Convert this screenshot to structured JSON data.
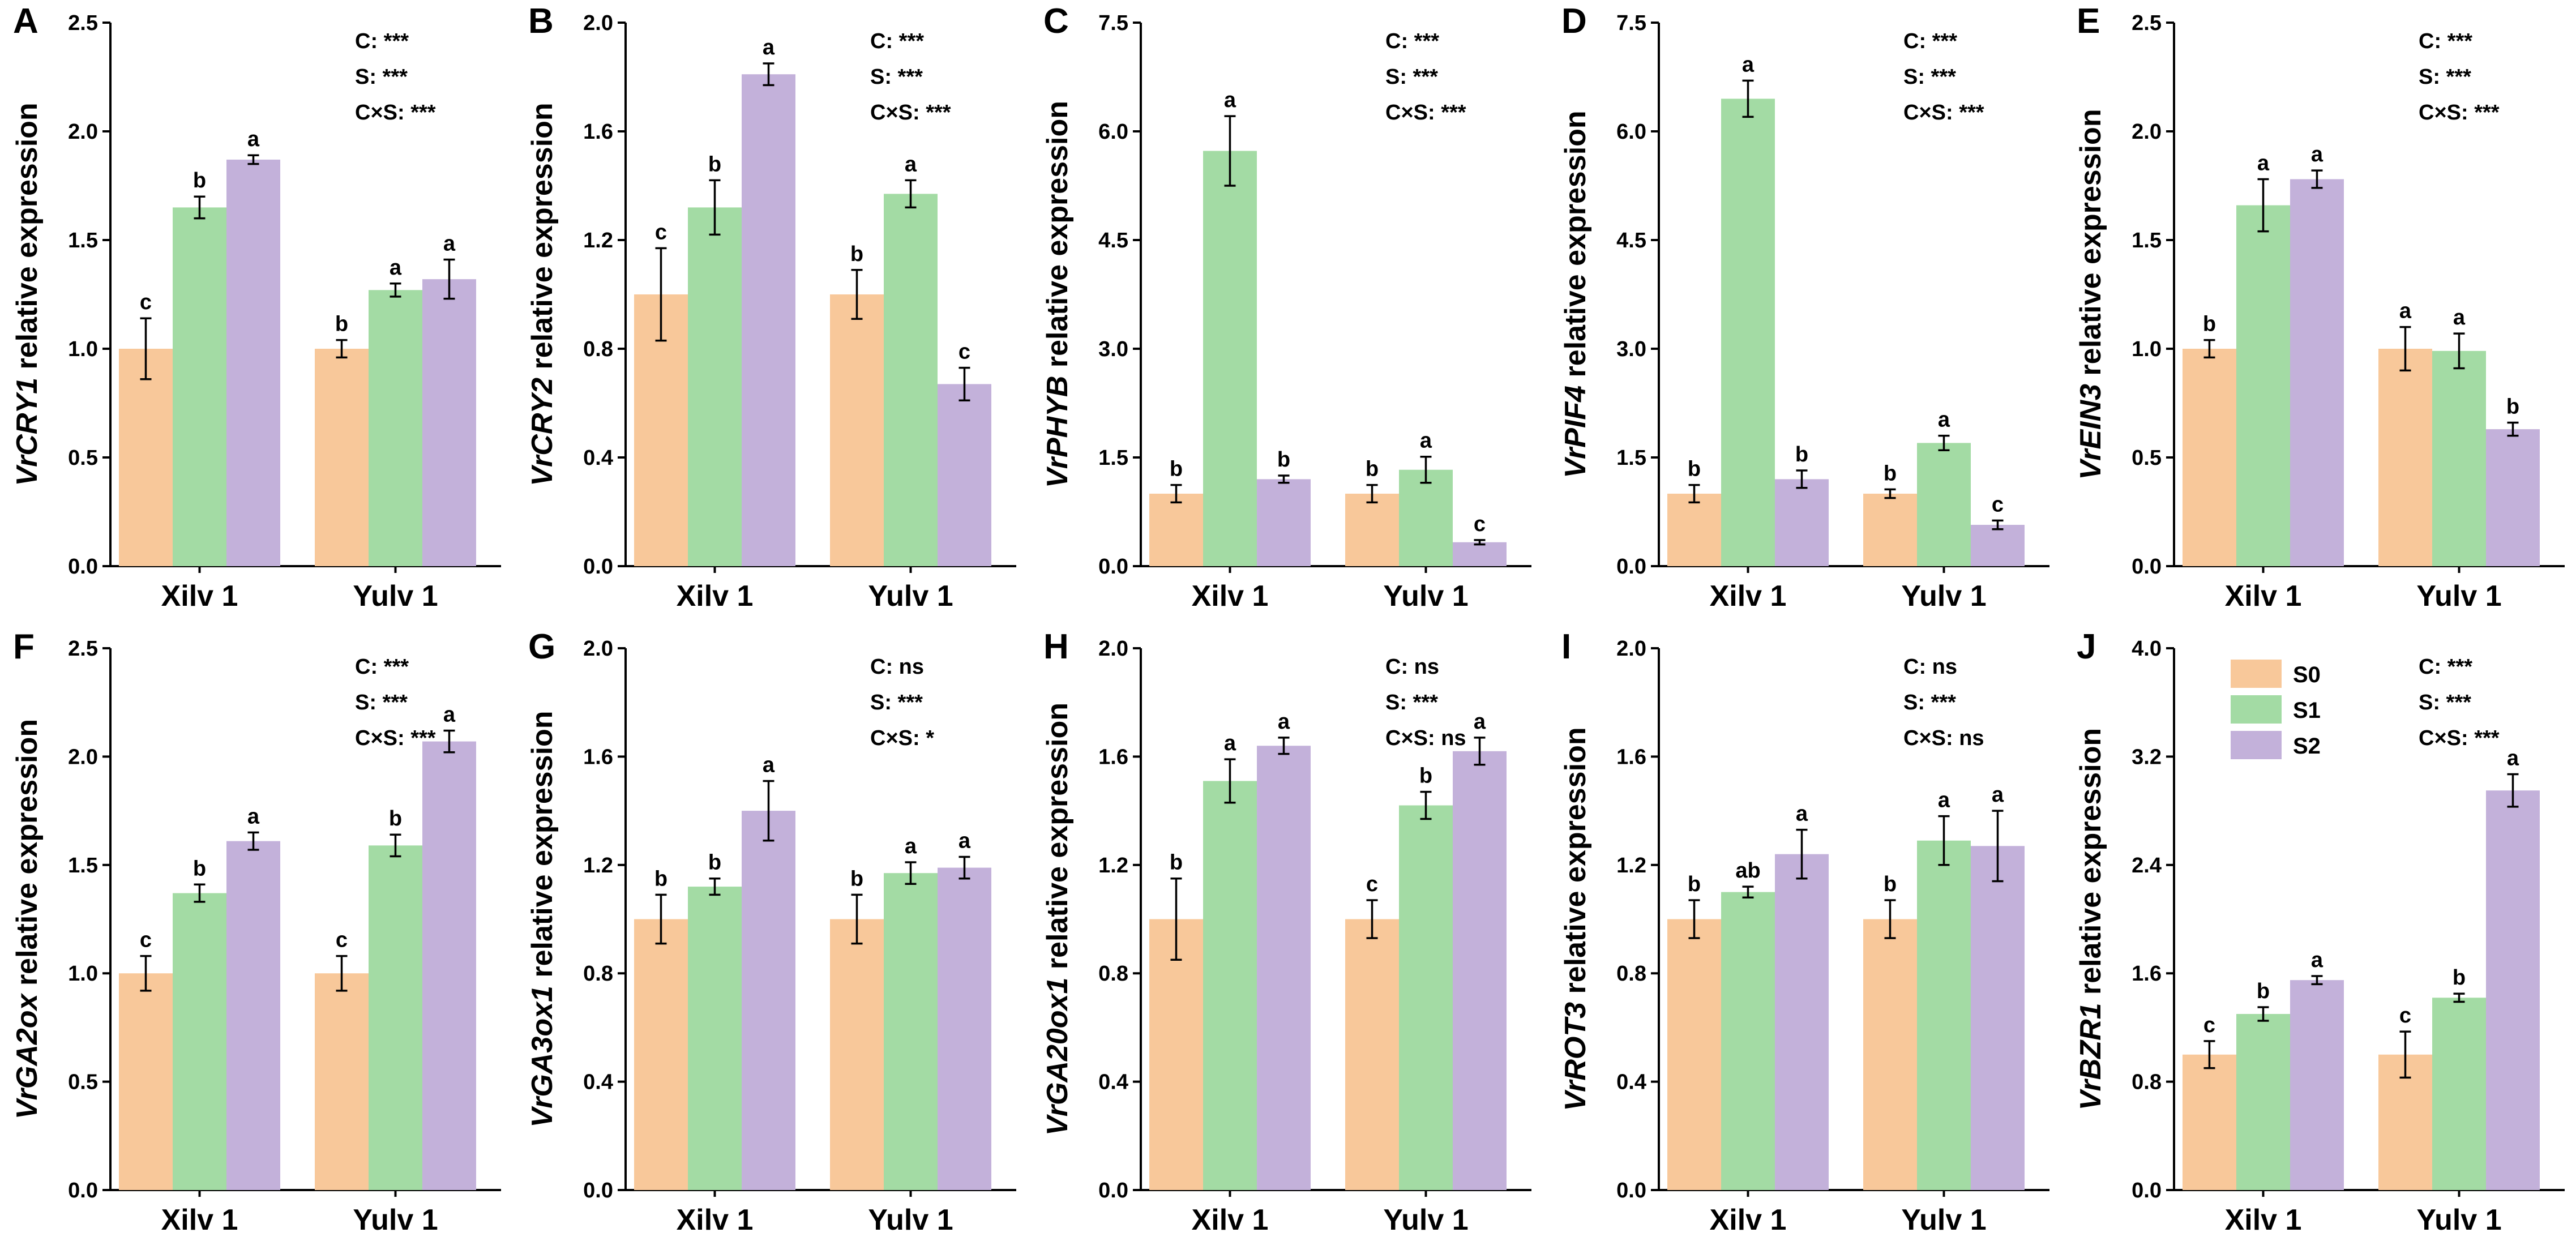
{
  "colors": {
    "S0": "#f8c89a",
    "S1": "#a3dba4",
    "S2": "#c3b1da",
    "axis": "#000000"
  },
  "legend": {
    "labels": [
      "S0",
      "S1",
      "S2"
    ]
  },
  "chart_data": [
    {
      "panel": "A",
      "type": "bar",
      "ylabel_gene": "VrCRY1",
      "ylabel_rest": " relative expression",
      "ylim": [
        0,
        2.5
      ],
      "yticks": [
        "0.0",
        "0.5",
        "1.0",
        "1.5",
        "2.0",
        "2.5"
      ],
      "categories": [
        "Xilv 1",
        "Yulv 1"
      ],
      "series": [
        {
          "name": "S0",
          "values": [
            1.0,
            1.0
          ],
          "errors": [
            0.14,
            0.04
          ],
          "letters": [
            "c",
            "b"
          ]
        },
        {
          "name": "S1",
          "values": [
            1.65,
            1.27
          ],
          "errors": [
            0.05,
            0.03
          ],
          "letters": [
            "b",
            "a"
          ]
        },
        {
          "name": "S2",
          "values": [
            1.87,
            1.32
          ],
          "errors": [
            0.02,
            0.09
          ],
          "letters": [
            "a",
            "a"
          ]
        }
      ],
      "stats": [
        "C: ***",
        "S: ***",
        "C×S: ***"
      ]
    },
    {
      "panel": "B",
      "type": "bar",
      "ylabel_gene": "VrCRY2",
      "ylabel_rest": " relative expression",
      "ylim": [
        0,
        2.0
      ],
      "yticks": [
        "0.0",
        "0.4",
        "0.8",
        "1.2",
        "1.6",
        "2.0"
      ],
      "categories": [
        "Xilv 1",
        "Yulv 1"
      ],
      "series": [
        {
          "name": "S0",
          "values": [
            1.0,
            1.0
          ],
          "errors": [
            0.17,
            0.09
          ],
          "letters": [
            "c",
            "b"
          ]
        },
        {
          "name": "S1",
          "values": [
            1.32,
            1.37
          ],
          "errors": [
            0.1,
            0.05
          ],
          "letters": [
            "b",
            "a"
          ]
        },
        {
          "name": "S2",
          "values": [
            1.81,
            0.67
          ],
          "errors": [
            0.04,
            0.06
          ],
          "letters": [
            "a",
            "c"
          ]
        }
      ],
      "stats": [
        "C: ***",
        "S: ***",
        "C×S: ***"
      ]
    },
    {
      "panel": "C",
      "type": "bar",
      "ylabel_gene": "VrPHYB",
      "ylabel_rest": " relative expression",
      "ylim": [
        0,
        7.5
      ],
      "yticks": [
        "0.0",
        "1.5",
        "3.0",
        "4.5",
        "6.0",
        "7.5"
      ],
      "categories": [
        "Xilv 1",
        "Yulv 1"
      ],
      "series": [
        {
          "name": "S0",
          "values": [
            1.0,
            1.0
          ],
          "errors": [
            0.12,
            0.12
          ],
          "letters": [
            "b",
            "b"
          ]
        },
        {
          "name": "S1",
          "values": [
            5.73,
            1.33
          ],
          "errors": [
            0.48,
            0.18
          ],
          "letters": [
            "a",
            "a"
          ]
        },
        {
          "name": "S2",
          "values": [
            1.2,
            0.33
          ],
          "errors": [
            0.05,
            0.03
          ],
          "letters": [
            "b",
            "c"
          ]
        }
      ],
      "stats": [
        "C: ***",
        "S: ***",
        "C×S: ***"
      ]
    },
    {
      "panel": "D",
      "type": "bar",
      "ylabel_gene": "VrPIF4",
      "ylabel_rest": " relative expression",
      "ylim": [
        0,
        7.5
      ],
      "yticks": [
        "0.0",
        "1.5",
        "3.0",
        "4.5",
        "6.0",
        "7.5"
      ],
      "categories": [
        "Xilv 1",
        "Yulv 1"
      ],
      "series": [
        {
          "name": "S0",
          "values": [
            1.0,
            1.0
          ],
          "errors": [
            0.12,
            0.06
          ],
          "letters": [
            "b",
            "b"
          ]
        },
        {
          "name": "S1",
          "values": [
            6.45,
            1.7
          ],
          "errors": [
            0.25,
            0.1
          ],
          "letters": [
            "a",
            "a"
          ]
        },
        {
          "name": "S2",
          "values": [
            1.2,
            0.57
          ],
          "errors": [
            0.12,
            0.06
          ],
          "letters": [
            "b",
            "c"
          ]
        }
      ],
      "stats": [
        "C: ***",
        "S: ***",
        "C×S: ***"
      ]
    },
    {
      "panel": "E",
      "type": "bar",
      "ylabel_gene": "VrEIN3",
      "ylabel_rest": " relative expression",
      "ylim": [
        0,
        2.5
      ],
      "yticks": [
        "0.0",
        "0.5",
        "1.0",
        "1.5",
        "2.0",
        "2.5"
      ],
      "categories": [
        "Xilv 1",
        "Yulv 1"
      ],
      "series": [
        {
          "name": "S0",
          "values": [
            1.0,
            1.0
          ],
          "errors": [
            0.04,
            0.1
          ],
          "letters": [
            "b",
            "a"
          ]
        },
        {
          "name": "S1",
          "values": [
            1.66,
            0.99
          ],
          "errors": [
            0.12,
            0.08
          ],
          "letters": [
            "a",
            "a"
          ]
        },
        {
          "name": "S2",
          "values": [
            1.78,
            0.63
          ],
          "errors": [
            0.04,
            0.03
          ],
          "letters": [
            "a",
            "b"
          ]
        }
      ],
      "stats": [
        "C: ***",
        "S: ***",
        "C×S: ***"
      ]
    },
    {
      "panel": "F",
      "type": "bar",
      "ylabel_gene": "VrGA2ox",
      "ylabel_rest": " relative expression",
      "ylim": [
        0,
        2.5
      ],
      "yticks": [
        "0.0",
        "0.5",
        "1.0",
        "1.5",
        "2.0",
        "2.5"
      ],
      "categories": [
        "Xilv 1",
        "Yulv 1"
      ],
      "series": [
        {
          "name": "S0",
          "values": [
            1.0,
            1.0
          ],
          "errors": [
            0.08,
            0.08
          ],
          "letters": [
            "c",
            "c"
          ]
        },
        {
          "name": "S1",
          "values": [
            1.37,
            1.59
          ],
          "errors": [
            0.04,
            0.05
          ],
          "letters": [
            "b",
            "b"
          ]
        },
        {
          "name": "S2",
          "values": [
            1.61,
            2.07
          ],
          "errors": [
            0.04,
            0.05
          ],
          "letters": [
            "a",
            "a"
          ]
        }
      ],
      "stats": [
        "C: ***",
        "S: ***",
        "C×S: ***"
      ]
    },
    {
      "panel": "G",
      "type": "bar",
      "ylabel_gene": "VrGA3ox1",
      "ylabel_rest": " relative expression",
      "ylim": [
        0,
        2.0
      ],
      "yticks": [
        "0.0",
        "0.4",
        "0.8",
        "1.2",
        "1.6",
        "2.0"
      ],
      "categories": [
        "Xilv 1",
        "Yulv 1"
      ],
      "series": [
        {
          "name": "S0",
          "values": [
            1.0,
            1.0
          ],
          "errors": [
            0.09,
            0.09
          ],
          "letters": [
            "b",
            "b"
          ]
        },
        {
          "name": "S1",
          "values": [
            1.12,
            1.17
          ],
          "errors": [
            0.03,
            0.04
          ],
          "letters": [
            "b",
            "a"
          ]
        },
        {
          "name": "S2",
          "values": [
            1.4,
            1.19
          ],
          "errors": [
            0.11,
            0.04
          ],
          "letters": [
            "a",
            "a"
          ]
        }
      ],
      "stats": [
        "C: ns",
        "S: ***",
        "C×S: *"
      ]
    },
    {
      "panel": "H",
      "type": "bar",
      "ylabel_gene": "VrGA20ox1",
      "ylabel_rest": " relative expression",
      "ylim": [
        0,
        2.0
      ],
      "yticks": [
        "0.0",
        "0.4",
        "0.8",
        "1.2",
        "1.6",
        "2.0"
      ],
      "categories": [
        "Xilv 1",
        "Yulv 1"
      ],
      "series": [
        {
          "name": "S0",
          "values": [
            1.0,
            1.0
          ],
          "errors": [
            0.15,
            0.07
          ],
          "letters": [
            "b",
            "c"
          ]
        },
        {
          "name": "S1",
          "values": [
            1.51,
            1.42
          ],
          "errors": [
            0.08,
            0.05
          ],
          "letters": [
            "a",
            "b"
          ]
        },
        {
          "name": "S2",
          "values": [
            1.64,
            1.62
          ],
          "errors": [
            0.03,
            0.05
          ],
          "letters": [
            "a",
            "a"
          ]
        }
      ],
      "stats": [
        "C: ns",
        "S: ***",
        "C×S: ns"
      ]
    },
    {
      "panel": "I",
      "type": "bar",
      "ylabel_gene": "VrROT3",
      "ylabel_rest": " relative expression",
      "ylim": [
        0,
        2.0
      ],
      "yticks": [
        "0.0",
        "0.4",
        "0.8",
        "1.2",
        "1.6",
        "2.0"
      ],
      "categories": [
        "Xilv 1",
        "Yulv 1"
      ],
      "series": [
        {
          "name": "S0",
          "values": [
            1.0,
            1.0
          ],
          "errors": [
            0.07,
            0.07
          ],
          "letters": [
            "b",
            "b"
          ]
        },
        {
          "name": "S1",
          "values": [
            1.1,
            1.29
          ],
          "errors": [
            0.02,
            0.09
          ],
          "letters": [
            "ab",
            "a"
          ]
        },
        {
          "name": "S2",
          "values": [
            1.24,
            1.27
          ],
          "errors": [
            0.09,
            0.13
          ],
          "letters": [
            "a",
            "a"
          ]
        }
      ],
      "stats": [
        "C: ns",
        "S: ***",
        "C×S: ns"
      ]
    },
    {
      "panel": "J",
      "type": "bar",
      "ylabel_gene": "VrBZR1",
      "ylabel_rest": " relative expression",
      "ylim": [
        0,
        4.0
      ],
      "yticks": [
        "0.0",
        "0.8",
        "1.6",
        "2.4",
        "3.2",
        "4.0"
      ],
      "categories": [
        "Xilv 1",
        "Yulv 1"
      ],
      "series": [
        {
          "name": "S0",
          "values": [
            1.0,
            1.0
          ],
          "errors": [
            0.1,
            0.17
          ],
          "letters": [
            "c",
            "c"
          ]
        },
        {
          "name": "S1",
          "values": [
            1.3,
            1.42
          ],
          "errors": [
            0.05,
            0.03
          ],
          "letters": [
            "b",
            "b"
          ]
        },
        {
          "name": "S2",
          "values": [
            1.55,
            2.95
          ],
          "errors": [
            0.03,
            0.12
          ],
          "letters": [
            "a",
            "a"
          ]
        }
      ],
      "stats": [
        "C: ***",
        "S: ***",
        "C×S: ***"
      ],
      "show_legend": true
    }
  ]
}
